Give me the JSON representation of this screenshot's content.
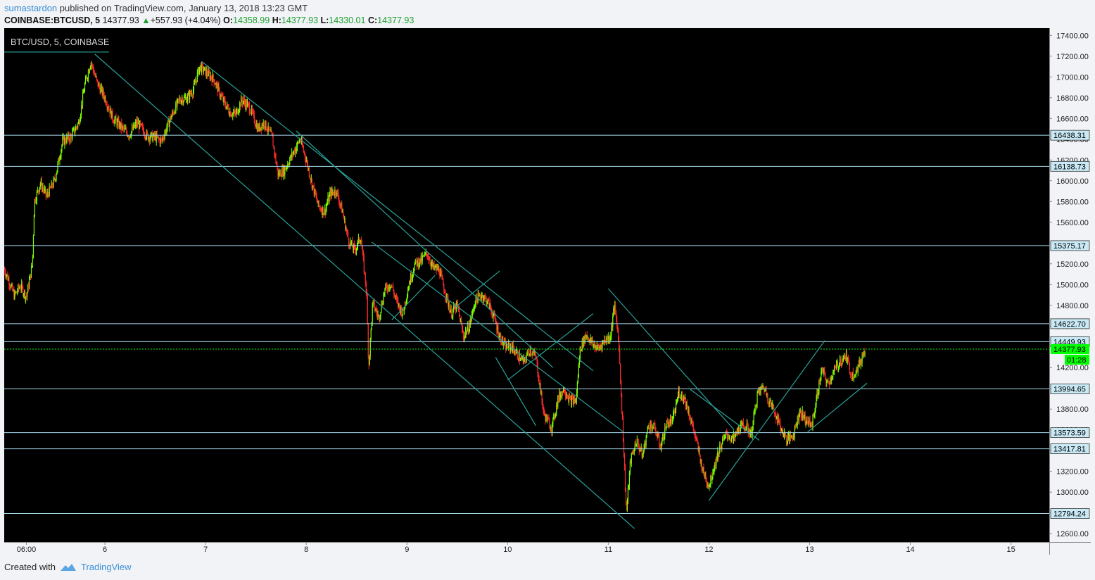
{
  "header": {
    "author": "sumastardon",
    "published_text": "published on TradingView.com, January 13, 2018 13:23 GMT",
    "symbol": "COINBASE:BTCUSD, 5",
    "last": "14377.93",
    "change": "+557.93 (+4.04%)",
    "open_label": "O:",
    "open": "14358.99",
    "high_label": "H:",
    "high": "14377.93",
    "low_label": "L:",
    "low": "14330.01",
    "close_label": "C:",
    "close": "14377.93"
  },
  "footer": {
    "created_with": "Created with",
    "brand": "TradingView"
  },
  "colors": {
    "background": "#000000",
    "up": "#7cfc00",
    "down": "#ff2a2a",
    "trendline": "#2aa198",
    "level_line": "#a8d8ea",
    "price_line": "#00ff00",
    "axis_text": "#222222"
  },
  "chart_data": {
    "type": "candlestick",
    "title": "BTC/USD, 5, COINBASE",
    "yaxis": {
      "ylim": [
        12520,
        17470
      ],
      "ticks": [
        17400,
        17200,
        17000,
        16800,
        16600,
        16400,
        16200,
        16000,
        15800,
        15600,
        15400,
        15200,
        15000,
        14800,
        14600,
        14400,
        14200,
        14000,
        13800,
        13600,
        13400,
        13200,
        13000,
        12800,
        12600
      ],
      "tick_labels": [
        "17400.00",
        "17200.00",
        "17000.00",
        "16800.00",
        "16600.00",
        "16400.00",
        "16200.00",
        "16000.00",
        "15800.00",
        "15600.00",
        "15400.00",
        "15200.00",
        "15000.00",
        "14800.00",
        "14600.00",
        "14400.00",
        "14200.00",
        "14000.00",
        "13800.00",
        "13600.00",
        "13400.00",
        "13200.00",
        "13000.00",
        "12800.00",
        "12600.00"
      ]
    },
    "xaxis": {
      "xlim": [
        5.0,
        15.38
      ],
      "ticks": [
        5.22,
        6,
        7,
        8,
        9,
        10,
        11,
        12,
        13,
        14,
        15
      ],
      "tick_labels": [
        "06:00",
        "6",
        "7",
        "8",
        "9",
        "10",
        "11",
        "12",
        "13",
        "14",
        "15"
      ]
    },
    "price_anchors": [
      [
        5.0,
        15150
      ],
      [
        5.05,
        15030
      ],
      [
        5.1,
        14890
      ],
      [
        5.16,
        14990
      ],
      [
        5.22,
        14880
      ],
      [
        5.28,
        15200
      ],
      [
        5.3,
        15800
      ],
      [
        5.36,
        15980
      ],
      [
        5.42,
        15850
      ],
      [
        5.5,
        16000
      ],
      [
        5.58,
        16380
      ],
      [
        5.66,
        16420
      ],
      [
        5.74,
        16560
      ],
      [
        5.8,
        16920
      ],
      [
        5.86,
        17150
      ],
      [
        5.92,
        16950
      ],
      [
        6.0,
        16800
      ],
      [
        6.08,
        16600
      ],
      [
        6.16,
        16520
      ],
      [
        6.24,
        16440
      ],
      [
        6.32,
        16560
      ],
      [
        6.42,
        16430
      ],
      [
        6.5,
        16420
      ],
      [
        6.56,
        16380
      ],
      [
        6.66,
        16620
      ],
      [
        6.74,
        16780
      ],
      [
        6.82,
        16800
      ],
      [
        6.88,
        16880
      ],
      [
        6.94,
        17100
      ],
      [
        7.0,
        17050
      ],
      [
        7.08,
        16980
      ],
      [
        7.16,
        16800
      ],
      [
        7.24,
        16660
      ],
      [
        7.3,
        16640
      ],
      [
        7.36,
        16780
      ],
      [
        7.44,
        16700
      ],
      [
        7.52,
        16500
      ],
      [
        7.58,
        16560
      ],
      [
        7.66,
        16420
      ],
      [
        7.72,
        16060
      ],
      [
        7.78,
        16100
      ],
      [
        7.86,
        16250
      ],
      [
        7.94,
        16400
      ],
      [
        8.0,
        16200
      ],
      [
        8.06,
        15960
      ],
      [
        8.12,
        15760
      ],
      [
        8.18,
        15700
      ],
      [
        8.24,
        15880
      ],
      [
        8.3,
        15900
      ],
      [
        8.36,
        15700
      ],
      [
        8.42,
        15420
      ],
      [
        8.48,
        15330
      ],
      [
        8.54,
        15460
      ],
      [
        8.6,
        14920
      ],
      [
        8.62,
        14200
      ],
      [
        8.66,
        14820
      ],
      [
        8.72,
        14680
      ],
      [
        8.78,
        14950
      ],
      [
        8.84,
        15010
      ],
      [
        8.9,
        14830
      ],
      [
        8.96,
        14720
      ],
      [
        9.02,
        15010
      ],
      [
        9.08,
        15200
      ],
      [
        9.14,
        15230
      ],
      [
        9.2,
        15300
      ],
      [
        9.26,
        15160
      ],
      [
        9.32,
        15140
      ],
      [
        9.38,
        14920
      ],
      [
        9.44,
        14720
      ],
      [
        9.5,
        14800
      ],
      [
        9.56,
        14500
      ],
      [
        9.62,
        14600
      ],
      [
        9.68,
        14850
      ],
      [
        9.74,
        14900
      ],
      [
        9.8,
        14840
      ],
      [
        9.86,
        14700
      ],
      [
        9.92,
        14500
      ],
      [
        9.98,
        14400
      ],
      [
        10.04,
        14400
      ],
      [
        10.1,
        14320
      ],
      [
        10.16,
        14250
      ],
      [
        10.22,
        14380
      ],
      [
        10.28,
        14300
      ],
      [
        10.36,
        13750
      ],
      [
        10.44,
        13620
      ],
      [
        10.5,
        13900
      ],
      [
        10.56,
        14000
      ],
      [
        10.62,
        13880
      ],
      [
        10.68,
        13880
      ],
      [
        10.72,
        14380
      ],
      [
        10.78,
        14520
      ],
      [
        10.84,
        14430
      ],
      [
        10.9,
        14380
      ],
      [
        10.96,
        14460
      ],
      [
        11.02,
        14500
      ],
      [
        11.06,
        14800
      ],
      [
        11.1,
        14500
      ],
      [
        11.14,
        13700
      ],
      [
        11.18,
        12800
      ],
      [
        11.22,
        13300
      ],
      [
        11.28,
        13500
      ],
      [
        11.34,
        13350
      ],
      [
        11.4,
        13650
      ],
      [
        11.46,
        13620
      ],
      [
        11.52,
        13440
      ],
      [
        11.58,
        13660
      ],
      [
        11.64,
        13690
      ],
      [
        11.7,
        13960
      ],
      [
        11.76,
        13900
      ],
      [
        11.82,
        13700
      ],
      [
        11.88,
        13470
      ],
      [
        11.94,
        13200
      ],
      [
        12.0,
        13060
      ],
      [
        12.06,
        13280
      ],
      [
        12.12,
        13460
      ],
      [
        12.18,
        13560
      ],
      [
        12.24,
        13500
      ],
      [
        12.3,
        13620
      ],
      [
        12.36,
        13640
      ],
      [
        12.42,
        13560
      ],
      [
        12.48,
        13940
      ],
      [
        12.54,
        14020
      ],
      [
        12.6,
        13880
      ],
      [
        12.66,
        13760
      ],
      [
        12.72,
        13600
      ],
      [
        12.78,
        13500
      ],
      [
        12.84,
        13560
      ],
      [
        12.9,
        13780
      ],
      [
        12.96,
        13700
      ],
      [
        13.02,
        13640
      ],
      [
        13.08,
        13960
      ],
      [
        13.12,
        14180
      ],
      [
        13.18,
        14040
      ],
      [
        13.24,
        14160
      ],
      [
        13.3,
        14260
      ],
      [
        13.36,
        14310
      ],
      [
        13.42,
        14120
      ],
      [
        13.48,
        14200
      ],
      [
        13.54,
        14350
      ],
      [
        13.55,
        14378
      ]
    ],
    "horizontal_levels": [
      {
        "price": 16438.31,
        "label": "16438.31"
      },
      {
        "price": 16138.73,
        "label": "16138.73"
      },
      {
        "price": 15375.17,
        "label": "15375.17"
      },
      {
        "price": 14622.7,
        "label": "14622.70"
      },
      {
        "price": 14449.93,
        "label": "14449.93"
      },
      {
        "price": 13994.65,
        "label": "13994.65"
      },
      {
        "price": 13573.59,
        "label": "13573.59"
      },
      {
        "price": 13417.81,
        "label": "13417.81"
      },
      {
        "price": 12794.24,
        "label": "12794.24"
      }
    ],
    "last_price": {
      "price": 14377.93,
      "label": "14377.93",
      "countdown": "01:28"
    },
    "trendlines": [
      [
        [
          5.9,
          17220
        ],
        [
          11.26,
          12650
        ]
      ],
      [
        [
          6.96,
          17150
        ],
        [
          10.85,
          14170
        ]
      ],
      [
        [
          7.9,
          16480
        ],
        [
          10.45,
          14200
        ]
      ],
      [
        [
          8.65,
          15410
        ],
        [
          11.15,
          13580
        ]
      ],
      [
        [
          6.04,
          17240
        ],
        [
          5.0,
          17240
        ]
      ],
      [
        [
          11.0,
          14960
        ],
        [
          12.25,
          13600
        ]
      ],
      [
        [
          11.8,
          14000
        ],
        [
          12.5,
          13500
        ]
      ],
      [
        [
          12.0,
          12920
        ],
        [
          13.15,
          14460
        ]
      ],
      [
        [
          12.98,
          13580
        ],
        [
          13.57,
          14050
        ]
      ],
      [
        [
          10.0,
          14080
        ],
        [
          10.85,
          14720
        ]
      ],
      [
        [
          9.48,
          14780
        ],
        [
          9.92,
          15130
        ]
      ],
      [
        [
          9.28,
          15090
        ],
        [
          8.85,
          14660
        ]
      ],
      [
        [
          10.28,
          13640
        ],
        [
          9.88,
          14300
        ]
      ]
    ]
  }
}
